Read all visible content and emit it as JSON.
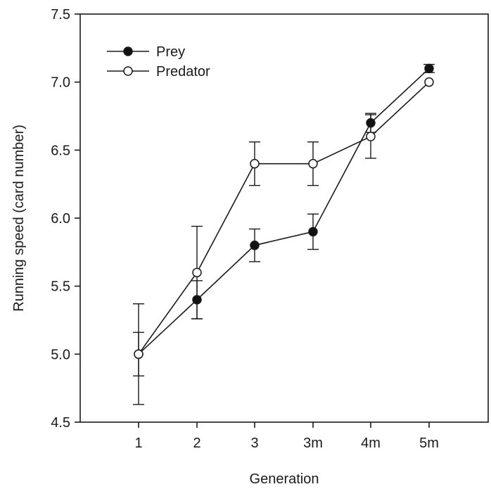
{
  "chart_data": {
    "type": "line",
    "title": "",
    "xlabel": "Generation",
    "ylabel": "Running speed (card number)",
    "categories": [
      "1",
      "2",
      "3",
      "3m",
      "4m",
      "5m"
    ],
    "ylim": [
      4.5,
      7.5
    ],
    "yticks": [
      "4.5",
      "5.0",
      "5.5",
      "6.0",
      "6.5",
      "7.0",
      "7.5"
    ],
    "grid": false,
    "legend_position": "top-left",
    "series": [
      {
        "name": "Prey",
        "marker": "filled-circle",
        "values": [
          5.0,
          5.4,
          5.8,
          5.9,
          6.7,
          7.1
        ],
        "error": [
          0.16,
          0.14,
          0.12,
          0.13,
          0.07,
          0.03
        ]
      },
      {
        "name": "Predator",
        "marker": "open-circle",
        "values": [
          5.0,
          5.6,
          6.4,
          6.4,
          6.6,
          7.0
        ],
        "error": [
          0.37,
          0.34,
          0.16,
          0.16,
          0.16,
          0.0
        ]
      }
    ],
    "colors": {
      "line": "#1a1a1a",
      "filled_marker": "#111111",
      "open_marker": "#ffffff"
    }
  }
}
